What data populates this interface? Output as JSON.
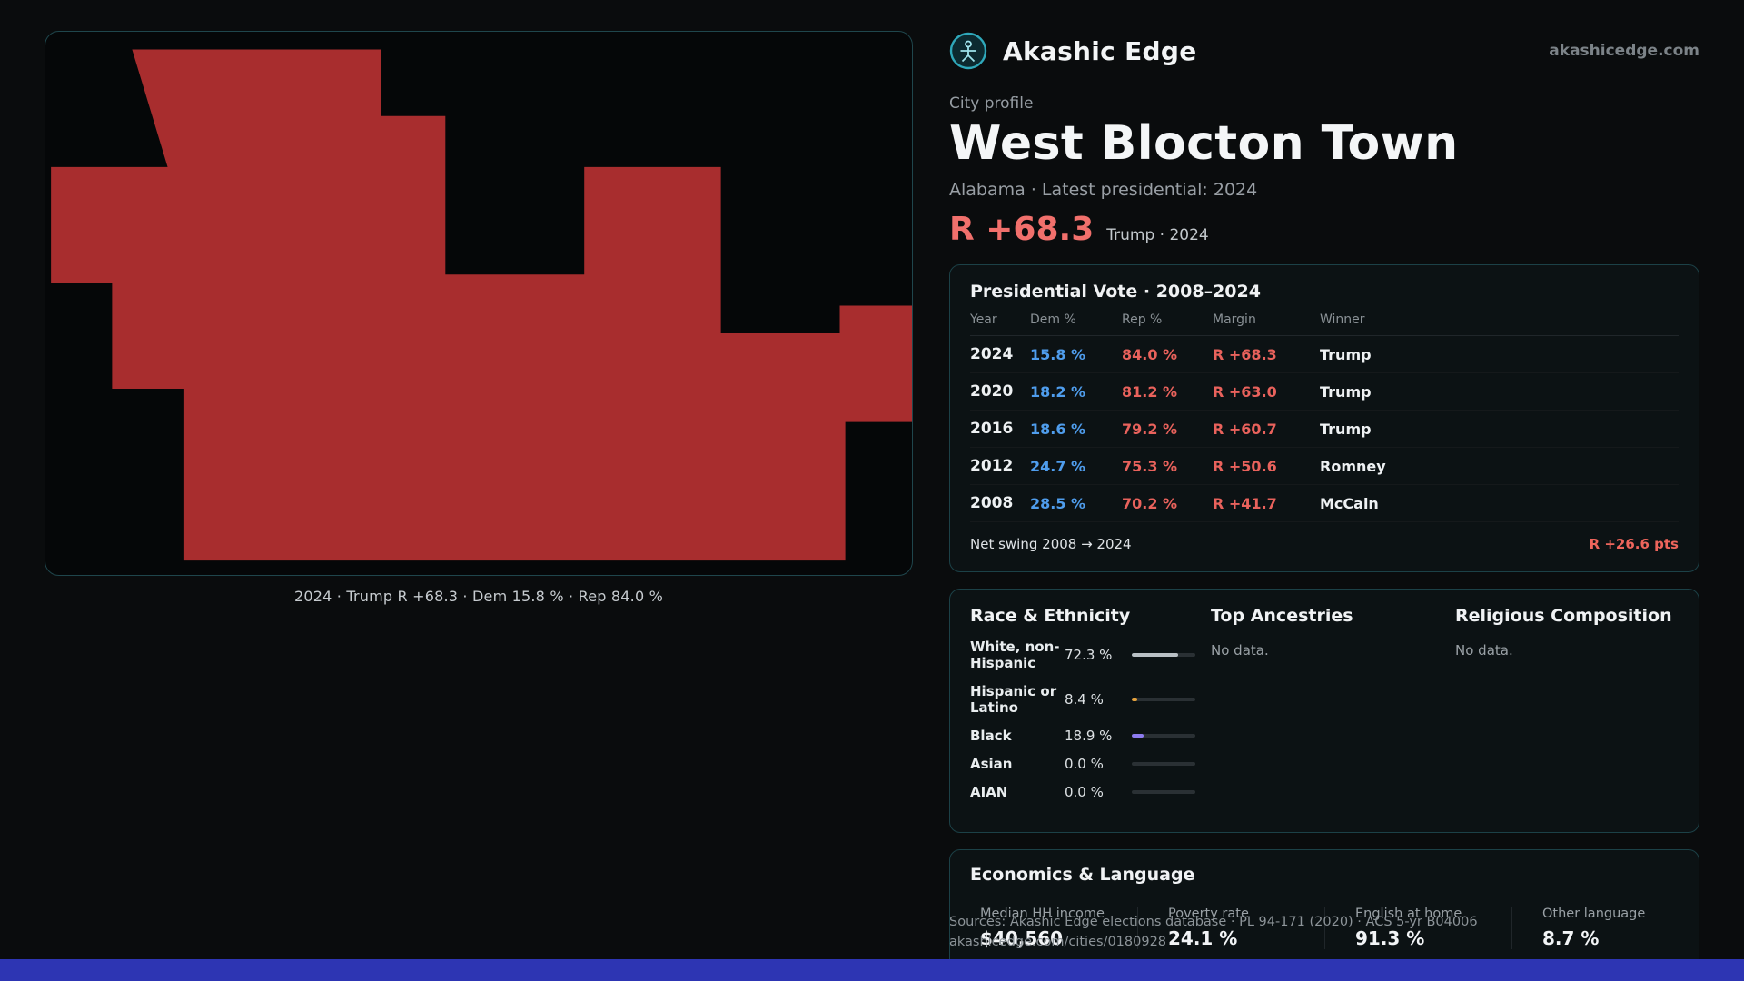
{
  "theme": {
    "background": "#0a0c0d",
    "card_border": "#1c4147",
    "accent_red": "#f1706c",
    "dem_blue": "#4f9ded",
    "rep_red": "#e9625c",
    "bottom_bar_blue": "#2d35b3"
  },
  "header": {
    "brand": "Akashic Edge",
    "website": "akashicedge.com"
  },
  "profile": {
    "kicker": "City profile",
    "title": "West Blocton Town",
    "subtitle": "Alabama · Latest presidential: 2024",
    "headline_margin": "R +68.3",
    "headline_note": "Trump · 2024"
  },
  "map": {
    "caption": "2024 · Trump R +68.3 · Dem 15.8 % · Rep 84.0 %",
    "shape_color": "#a82d2e"
  },
  "vote_card": {
    "title": "Presidential Vote · 2008–2024",
    "columns": [
      "Year",
      "Dem %",
      "Rep %",
      "Margin",
      "Winner"
    ],
    "rows": [
      {
        "year": "2024",
        "dem": "15.8 %",
        "rep": "84.0 %",
        "margin": "R +68.3",
        "winner": "Trump"
      },
      {
        "year": "2020",
        "dem": "18.2 %",
        "rep": "81.2 %",
        "margin": "R +63.0",
        "winner": "Trump"
      },
      {
        "year": "2016",
        "dem": "18.6 %",
        "rep": "79.2 %",
        "margin": "R +60.7",
        "winner": "Trump"
      },
      {
        "year": "2012",
        "dem": "24.7 %",
        "rep": "75.3 %",
        "margin": "R +50.6",
        "winner": "Romney"
      },
      {
        "year": "2008",
        "dem": "28.5 %",
        "rep": "70.2 %",
        "margin": "R +41.7",
        "winner": "McCain"
      }
    ],
    "net_swing_label": "Net swing 2008 → 2024",
    "net_swing_value": "R +26.6 pts"
  },
  "demographics": {
    "race_title": "Race & Ethnicity",
    "race_rows": [
      {
        "label": "White, non-Hispanic",
        "value": "72.3 %",
        "pct": 72.3,
        "color": "#b9c0c5"
      },
      {
        "label": "Hispanic or Latino",
        "value": "8.4 %",
        "pct": 8.4,
        "color": "#e6a23c"
      },
      {
        "label": "Black",
        "value": "18.9 %",
        "pct": 18.9,
        "color": "#8d7bef"
      },
      {
        "label": "Asian",
        "value": "0.0 %",
        "pct": 0,
        "color": "#b9c0c5"
      },
      {
        "label": "AIAN",
        "value": "0.0 %",
        "pct": 0,
        "color": "#b9c0c5"
      }
    ],
    "ancestries_title": "Top Ancestries",
    "ancestries_empty": "No data.",
    "religion_title": "Religious Composition",
    "religion_empty": "No data."
  },
  "economics": {
    "title": "Economics & Language",
    "stats": [
      {
        "label": "Median HH income",
        "value": "$40,560"
      },
      {
        "label": "Poverty rate",
        "value": "24.1 %"
      },
      {
        "label": "English at home",
        "value": "91.3 %"
      },
      {
        "label": "Other language",
        "value": "8.7 %"
      }
    ]
  },
  "footer": {
    "sources_line": "Sources: Akashic Edge elections database · PL 94-171 (2020) · ACS 5-yr B04006",
    "url_line": "akashicedge.com/cities/0180928"
  }
}
